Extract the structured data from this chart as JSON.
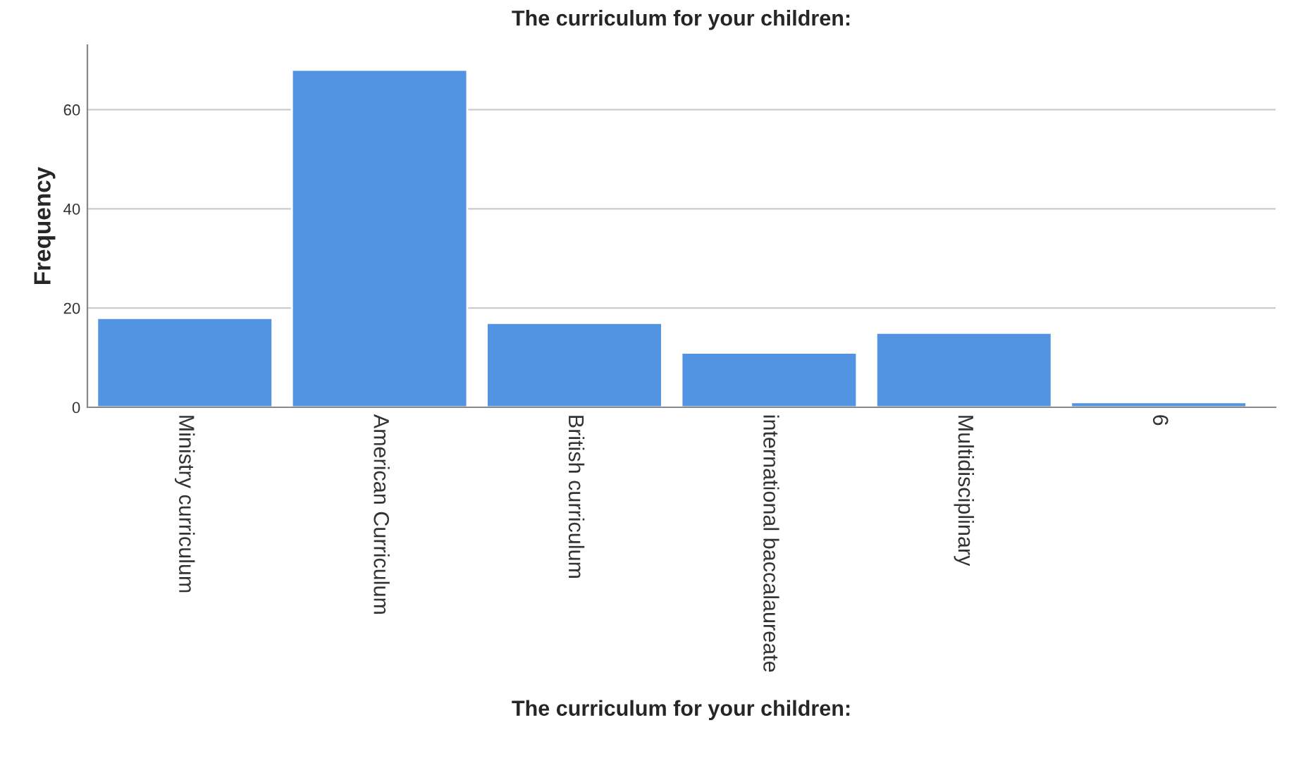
{
  "chart_data": {
    "type": "bar",
    "title": "The curriculum for your children:",
    "xlabel": "The curriculum for your children:",
    "ylabel": "Frequency",
    "categories": [
      "Ministry curriculum",
      "American Curriculum",
      "British curriculum",
      "international baccalaureate",
      "Multidisciplinary",
      "6"
    ],
    "values": [
      18,
      68,
      17,
      11,
      15,
      1
    ],
    "color": "#5294e2",
    "ylim": [
      0,
      73
    ],
    "yticks": [
      0,
      20,
      40,
      60
    ],
    "grid": "y"
  }
}
